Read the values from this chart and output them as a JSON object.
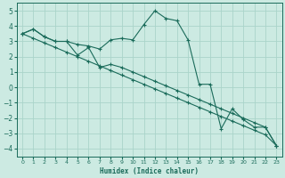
{
  "xlabel": "Humidex (Indice chaleur)",
  "background_color": "#cceae2",
  "grid_color": "#aad4ca",
  "line_color": "#1a6b5a",
  "xlim": [
    -0.5,
    23.5
  ],
  "ylim": [
    -4.5,
    5.5
  ],
  "yticks": [
    -4,
    -3,
    -2,
    -1,
    0,
    1,
    2,
    3,
    4,
    5
  ],
  "xticks": [
    0,
    1,
    2,
    3,
    4,
    5,
    6,
    7,
    8,
    9,
    10,
    11,
    12,
    13,
    14,
    15,
    16,
    17,
    18,
    19,
    20,
    21,
    22,
    23
  ],
  "series": [
    {
      "x": [
        0,
        1,
        2,
        3,
        4,
        5,
        6,
        7,
        8,
        9,
        10,
        11,
        12,
        13,
        14,
        15,
        16,
        17,
        18,
        19,
        20,
        21,
        22,
        23
      ],
      "y": [
        3.5,
        3.8,
        3.3,
        3.0,
        3.0,
        2.8,
        2.7,
        2.5,
        3.1,
        3.2,
        3.1,
        4.1,
        5.0,
        4.5,
        4.35,
        3.1,
        0.2,
        0.2,
        -2.7,
        -1.4,
        -2.1,
        -2.6,
        -2.6,
        -3.8
      ]
    },
    {
      "x": [
        0,
        1,
        2,
        3,
        4,
        5,
        6,
        7,
        8,
        9,
        10,
        11,
        12,
        13,
        14,
        15,
        16,
        17,
        18,
        19,
        20,
        21,
        22,
        23
      ],
      "y": [
        3.5,
        3.2,
        2.9,
        2.6,
        2.3,
        2.0,
        1.7,
        1.4,
        1.1,
        0.8,
        0.5,
        0.2,
        -0.1,
        -0.4,
        -0.7,
        -1.0,
        -1.3,
        -1.6,
        -1.9,
        -2.2,
        -2.5,
        -2.8,
        -3.1,
        -3.8
      ]
    },
    {
      "x": [
        0,
        1,
        2,
        3,
        4,
        5,
        6,
        7,
        8,
        9,
        10,
        11,
        12,
        13,
        14,
        15,
        16,
        17,
        18,
        19,
        20,
        21,
        22,
        23
      ],
      "y": [
        3.5,
        3.8,
        3.3,
        3.0,
        3.0,
        2.1,
        2.6,
        1.3,
        1.5,
        1.3,
        1.0,
        0.7,
        0.4,
        0.1,
        -0.2,
        -0.5,
        -0.8,
        -1.1,
        -1.4,
        -1.7,
        -2.0,
        -2.3,
        -2.6,
        -3.8
      ]
    }
  ]
}
